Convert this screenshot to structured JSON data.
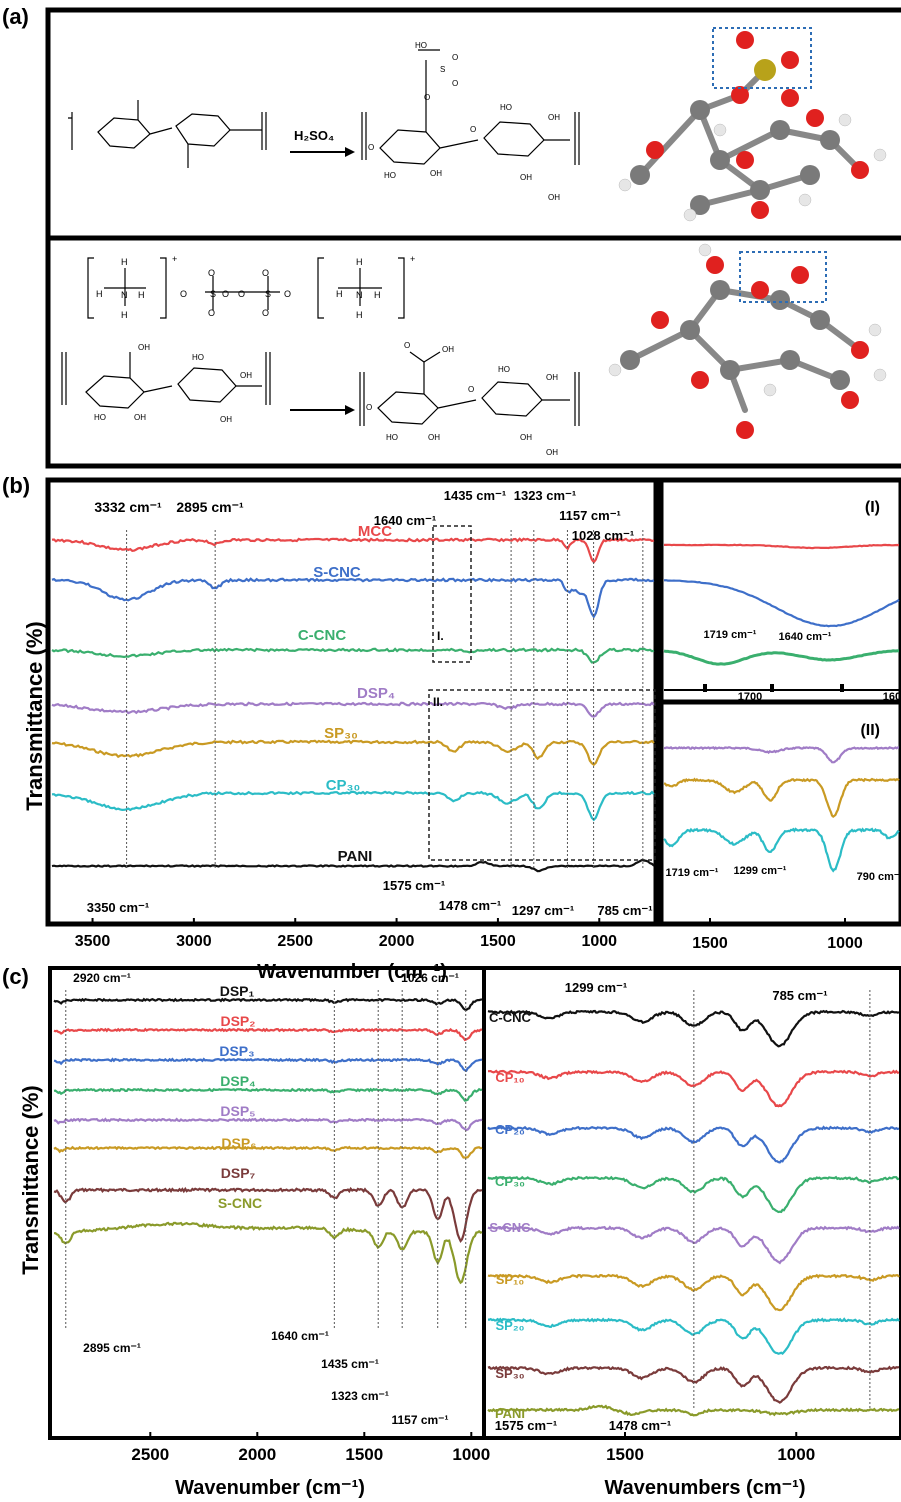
{
  "panels": {
    "a": {
      "letter": "(a)",
      "scheme1": {
        "reagent": "H₂SO₄",
        "groups": [
          "OH",
          "OH",
          "HO",
          "HO",
          "OH",
          "OH",
          "OH",
          "HO",
          "O",
          "O",
          "S",
          "O",
          "O",
          "OH",
          "HO",
          "HO",
          "OH",
          "OH"
        ]
      },
      "scheme2": {
        "groups": [
          "H",
          "H",
          "N",
          "H",
          "H",
          "O",
          "O",
          "S",
          "O",
          "O",
          "O",
          "O",
          "S",
          "O",
          "O",
          "H",
          "H",
          "N",
          "H",
          "H",
          "OH",
          "HO",
          "HO",
          "OH",
          "OH",
          "OH",
          "OH",
          "OH",
          "HO",
          "HO",
          "OH",
          "OH",
          "OH"
        ],
        "charges": [
          "+",
          "+",
          "-",
          "-"
        ]
      }
    },
    "b": {
      "letter": "(b)",
      "ylabel": "Transmittance (%)",
      "xlabel": "Wavenumber (cm⁻¹)",
      "sub_I": "(I)",
      "sub_II": "(II)",
      "box_I": "I.",
      "box_II": "II."
    },
    "c": {
      "letter": "(c)",
      "ylabel": "Transmittance (%)",
      "xlabel_left": "Wavenumber (cm⁻¹)",
      "xlabel_right": "Wavenumbers (cm⁻¹)"
    }
  },
  "chart_data": [
    {
      "id": "b-main",
      "type": "line",
      "title": "",
      "xlabel": "Wavenumber (cm-1)",
      "ylabel": "Transmittance (%)",
      "xlim": [
        3700,
        730
      ],
      "xticks": [
        3500,
        3000,
        2500,
        2000,
        1500,
        1000
      ],
      "series": [
        {
          "name": "MCC",
          "color": "#e8484a"
        },
        {
          "name": "S-CNC",
          "color": "#3e6fc9"
        },
        {
          "name": "C-CNC",
          "color": "#3aaf6e"
        },
        {
          "name": "DSP₄",
          "color": "#a07cc6"
        },
        {
          "name": "SP₃₀",
          "color": "#c99a23"
        },
        {
          "name": "CP₃₀",
          "color": "#2bbcc6"
        },
        {
          "name": "PANI",
          "color": "#111111"
        }
      ],
      "annotations": [
        "3332 cm⁻¹",
        "2895 cm⁻¹",
        "1640 cm⁻¹",
        "1435 cm⁻¹",
        "1323 cm⁻¹",
        "1157 cm⁻¹",
        "1028 cm⁻¹",
        "3350 cm⁻¹",
        "1575 cm⁻¹",
        "1478 cm⁻¹",
        "1297 cm⁻¹",
        "785 cm⁻¹"
      ]
    },
    {
      "id": "b-inset-I",
      "type": "line",
      "xticks": [
        1700,
        1600
      ],
      "annotations": [
        "1719 cm⁻¹",
        "1640 cm⁻¹"
      ]
    },
    {
      "id": "b-inset-II",
      "type": "line",
      "xticks": [
        1500,
        1000
      ],
      "annotations": [
        "1719 cm⁻¹",
        "1299 cm⁻¹",
        "790 cm⁻¹"
      ]
    },
    {
      "id": "c-left",
      "type": "line",
      "xlabel": "Wavenumber (cm-1)",
      "ylabel": "Transmittance (%)",
      "xlim": [
        2950,
        950
      ],
      "xticks": [
        2500,
        2000,
        1500,
        1000
      ],
      "series": [
        {
          "name": "DSP₁",
          "color": "#111111"
        },
        {
          "name": "DSP₂",
          "color": "#e8484a"
        },
        {
          "name": "DSP₃",
          "color": "#3e6fc9"
        },
        {
          "name": "DSP₄",
          "color": "#3aaf6e"
        },
        {
          "name": "DSP₅",
          "color": "#a07cc6"
        },
        {
          "name": "DSP₆",
          "color": "#c99a23"
        },
        {
          "name": "DSP₇",
          "color": "#7a3b3b"
        },
        {
          "name": "S-CNC",
          "color": "#8a9a2a"
        }
      ],
      "annotations": [
        "2920 cm⁻¹",
        "1026 cm⁻¹",
        "2895 cm⁻¹",
        "1640 cm⁻¹",
        "1435 cm⁻¹",
        "1323 cm⁻¹",
        "1157 cm⁻¹"
      ]
    },
    {
      "id": "c-right",
      "type": "line",
      "xlabel": "Wavenumbers (cm-1)",
      "xlim": [
        1900,
        700
      ],
      "xticks": [
        1500,
        1000
      ],
      "series": [
        {
          "name": "C-CNC",
          "color": "#111111"
        },
        {
          "name": "CP₁₀",
          "color": "#e8484a"
        },
        {
          "name": "CP₂₀",
          "color": "#3e6fc9"
        },
        {
          "name": "CP₃₀",
          "color": "#3aaf6e"
        },
        {
          "name": "S-CNC",
          "color": "#a07cc6"
        },
        {
          "name": "SP₁₀",
          "color": "#c99a23"
        },
        {
          "name": "SP₂₀",
          "color": "#2bbcc6"
        },
        {
          "name": "SP₃₀",
          "color": "#7a3b3b"
        },
        {
          "name": "PANI",
          "color": "#8a9a2a"
        }
      ],
      "annotations": [
        "1299 cm⁻¹",
        "785 cm⁻¹",
        "1575 cm⁻¹",
        "1478 cm⁻¹"
      ]
    }
  ]
}
